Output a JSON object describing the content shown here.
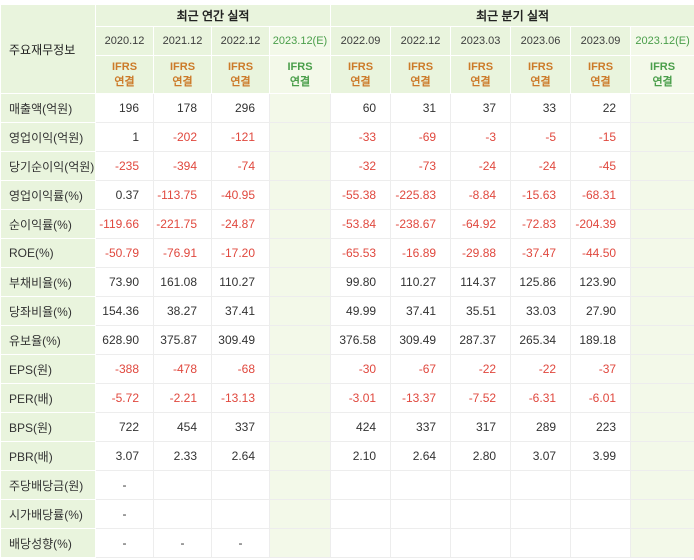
{
  "colors": {
    "header_bg": "#e9f4dd",
    "estimate_bg": "#f3f9e9",
    "negative": "#e0483e",
    "positive": "#333333",
    "ifrs_text": "#cc7a29",
    "estimate_text": "#4a9e4a",
    "grid_line": "#ededed"
  },
  "table": {
    "corner_label": "주요재무정보",
    "groups": [
      {
        "label": "최근 연간 실적"
      },
      {
        "label": "최근 분기 실적"
      }
    ],
    "ifrs": {
      "line1": "IFRS",
      "line2": "연결"
    },
    "columns": [
      {
        "label": "2020.12",
        "group": "annual",
        "estimate": false
      },
      {
        "label": "2021.12",
        "group": "annual",
        "estimate": false
      },
      {
        "label": "2022.12",
        "group": "annual",
        "estimate": false
      },
      {
        "label": "2023.12(E)",
        "group": "annual",
        "estimate": true
      },
      {
        "label": "2022.09",
        "group": "quarterly",
        "estimate": false
      },
      {
        "label": "2022.12",
        "group": "quarterly",
        "estimate": false
      },
      {
        "label": "2023.03",
        "group": "quarterly",
        "estimate": false
      },
      {
        "label": "2023.06",
        "group": "quarterly",
        "estimate": false
      },
      {
        "label": "2023.09",
        "group": "quarterly",
        "estimate": false
      },
      {
        "label": "2023.12(E)",
        "group": "quarterly",
        "estimate": true
      }
    ],
    "rows": [
      {
        "label": "매출액(억원)",
        "values": [
          "196",
          "178",
          "296",
          "",
          "60",
          "31",
          "37",
          "33",
          "22",
          ""
        ]
      },
      {
        "label": "영업이익(억원)",
        "values": [
          "1",
          "-202",
          "-121",
          "",
          "-33",
          "-69",
          "-3",
          "-5",
          "-15",
          ""
        ]
      },
      {
        "label": "당기순이익(억원)",
        "values": [
          "-235",
          "-394",
          "-74",
          "",
          "-32",
          "-73",
          "-24",
          "-24",
          "-45",
          ""
        ]
      },
      {
        "label": "영업이익률(%)",
        "values": [
          "0.37",
          "-113.75",
          "-40.95",
          "",
          "-55.38",
          "-225.83",
          "-8.84",
          "-15.63",
          "-68.31",
          ""
        ]
      },
      {
        "label": "순이익률(%)",
        "values": [
          "-119.66",
          "-221.75",
          "-24.87",
          "",
          "-53.84",
          "-238.67",
          "-64.92",
          "-72.83",
          "-204.39",
          ""
        ]
      },
      {
        "label": "ROE(%)",
        "values": [
          "-50.79",
          "-76.91",
          "-17.20",
          "",
          "-65.53",
          "-16.89",
          "-29.88",
          "-37.47",
          "-44.50",
          ""
        ]
      },
      {
        "label": "부채비율(%)",
        "values": [
          "73.90",
          "161.08",
          "110.27",
          "",
          "99.80",
          "110.27",
          "114.37",
          "125.86",
          "123.90",
          ""
        ]
      },
      {
        "label": "당좌비율(%)",
        "values": [
          "154.36",
          "38.27",
          "37.41",
          "",
          "49.99",
          "37.41",
          "35.51",
          "33.03",
          "27.90",
          ""
        ]
      },
      {
        "label": "유보율(%)",
        "values": [
          "628.90",
          "375.87",
          "309.49",
          "",
          "376.58",
          "309.49",
          "287.37",
          "265.34",
          "189.18",
          ""
        ]
      },
      {
        "label": "EPS(원)",
        "values": [
          "-388",
          "-478",
          "-68",
          "",
          "-30",
          "-67",
          "-22",
          "-22",
          "-37",
          ""
        ]
      },
      {
        "label": "PER(배)",
        "values": [
          "-5.72",
          "-2.21",
          "-13.13",
          "",
          "-3.01",
          "-13.37",
          "-7.52",
          "-6.31",
          "-6.01",
          ""
        ]
      },
      {
        "label": "BPS(원)",
        "values": [
          "722",
          "454",
          "337",
          "",
          "424",
          "337",
          "317",
          "289",
          "223",
          ""
        ]
      },
      {
        "label": "PBR(배)",
        "values": [
          "3.07",
          "2.33",
          "2.64",
          "",
          "2.10",
          "2.64",
          "2.80",
          "3.07",
          "3.99",
          ""
        ]
      },
      {
        "label": "주당배당금(원)",
        "values": [
          "-",
          "",
          "",
          "",
          "",
          "",
          "",
          "",
          "",
          ""
        ]
      },
      {
        "label": "시가배당률(%)",
        "values": [
          "-",
          "",
          "",
          "",
          "",
          "",
          "",
          "",
          "",
          ""
        ]
      },
      {
        "label": "배당성향(%)",
        "values": [
          "-",
          "-",
          "-",
          "",
          "",
          "",
          "",
          "",
          "",
          ""
        ]
      }
    ]
  }
}
